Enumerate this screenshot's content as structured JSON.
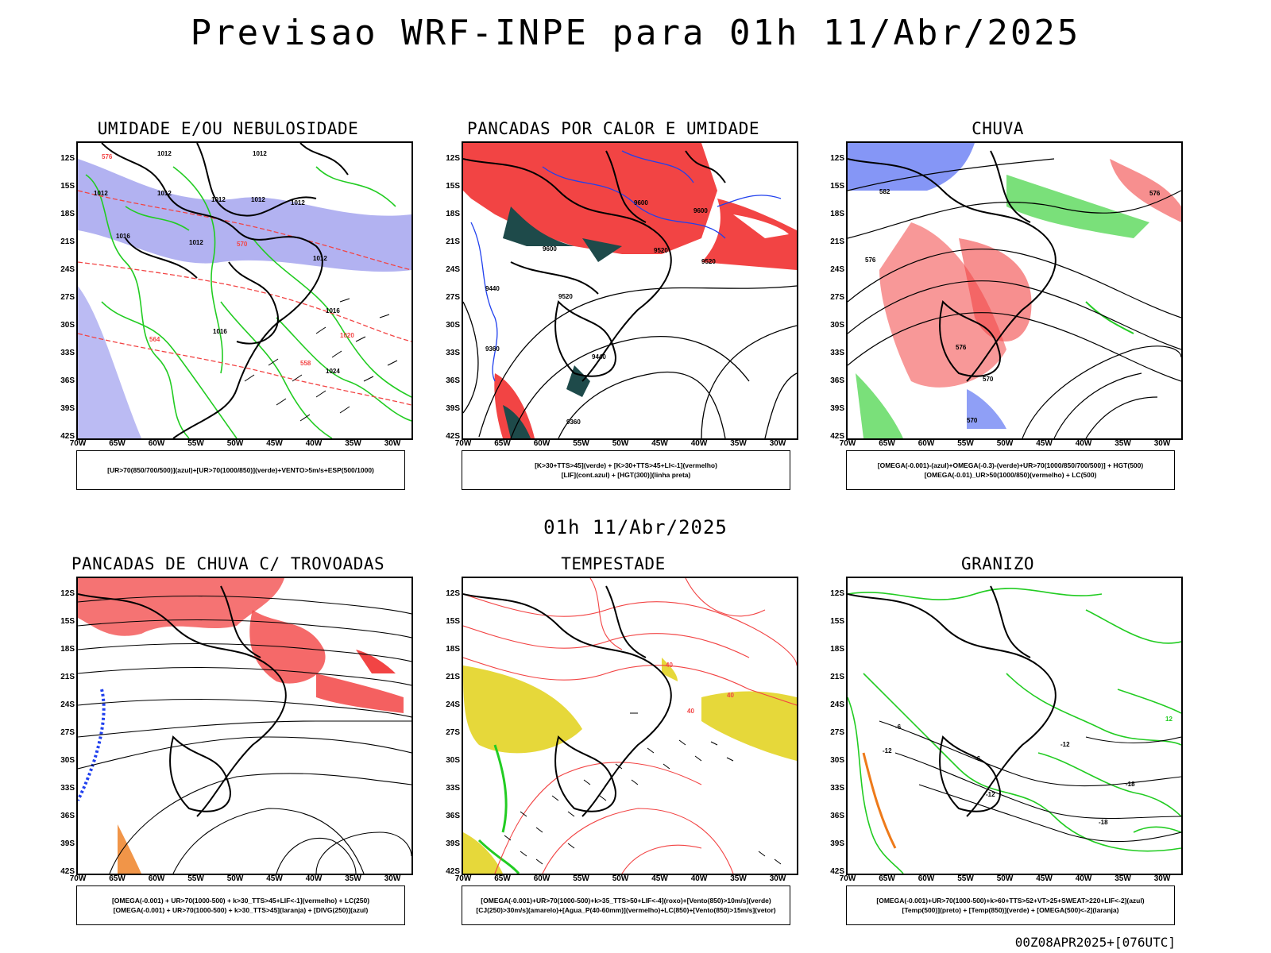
{
  "header": {
    "title": "Previsao WRF-INPE  para 01h 11/Abr/2025"
  },
  "mid_title": "01h 11/Abr/2025",
  "footer": "00Z08APR2025+[076UTC]",
  "axes": {
    "lat_labels": [
      "12S",
      "15S",
      "18S",
      "21S",
      "24S",
      "27S",
      "30S",
      "33S",
      "36S",
      "39S",
      "42S"
    ],
    "lon_labels": [
      "70W",
      "65W",
      "60W",
      "55W",
      "50W",
      "45W",
      "40W",
      "35W",
      "30W"
    ]
  },
  "panels": [
    {
      "title": "UMIDADE E/OU NEBULOSIDADE",
      "legend": [
        "[UR>70(850/700/500)](azul)+[UR>70(1000/850)](verde)+VENTO>5m/s+ESP(500/1000)"
      ],
      "contour_labels": [
        "1012",
        "1012",
        "1012",
        "1012",
        "1012",
        "1012",
        "1016",
        "1016",
        "1020",
        "1024",
        "570",
        "576",
        "564",
        "558"
      ]
    },
    {
      "title": "PANCADAS POR CALOR E UMIDADE",
      "legend": [
        "[K>30+TTS>45](verde) + [K>30+TTS>45+LI<-1](vermelho)",
        "[LIF](cont.azul) + [HGT(300)](linha preta)"
      ],
      "contour_labels": [
        "9600",
        "9600",
        "9520",
        "9520",
        "9440",
        "9360",
        "9360",
        "9440"
      ]
    },
    {
      "title": "CHUVA",
      "legend": [
        "[OMEGA(-0.001)-(azul)+OMEGA(-0.3)-(verde)+UR>70(1000/850/700/500)] + HGT(500)",
        "[OMEGA(-0.01)_UR>50(1000/850)(vermelho) + LC(500)"
      ],
      "contour_labels": [
        "582",
        "576",
        "576",
        "570",
        "576",
        "570"
      ]
    },
    {
      "title": "PANCADAS DE CHUVA C/ TROVOADAS",
      "legend": [
        "[OMEGA(-0.001) + UR>70(1000-500) + k>30_TTS>45+LIF<-1](vermelho) + LC(250)",
        "[OMEGA(-0.001) + UR>70(1000-500) + k>30_TTS>45](laranja) + [DIVG(250)](azul)"
      ],
      "contour_labels": []
    },
    {
      "title": "TEMPESTADE",
      "legend": [
        "[OMEGA(-0.001)+UR>70(1000-500)+k>35_TTS>50+LIF<-4](roxo)+[Vento(850)>10m/s](verde)",
        "[CJ(250)>30m/s](amarelo)+[Agua_P(40-60mm)](vermelho)+LC(850)+[Vento(850)>15m/s](vetor)"
      ],
      "contour_labels": [
        "40",
        "40",
        "40"
      ]
    },
    {
      "title": "GRANIZO",
      "legend": [
        "[OMEGA(-0.001)+UR>70(1000-500)+k>60+TTS>52+VT>25+SWEAT>220+LIF<-2](azul)",
        "[Temp(500)](preto) + [Temp(850)](verde) + [OMEGA(500)<-2](laranja)"
      ],
      "contour_labels": [
        "-6",
        "-12",
        "-12",
        "-12",
        "-18",
        "-18",
        "12",
        "-6"
      ]
    }
  ],
  "colors": {
    "blue_shade": "#aaaaf0",
    "green": "#22cc22",
    "red": "#f24444",
    "dark_teal": "#1e4a4a",
    "yellow": "#e6d83a",
    "orange": "#ee7a1a",
    "blue": "#2040ee"
  }
}
